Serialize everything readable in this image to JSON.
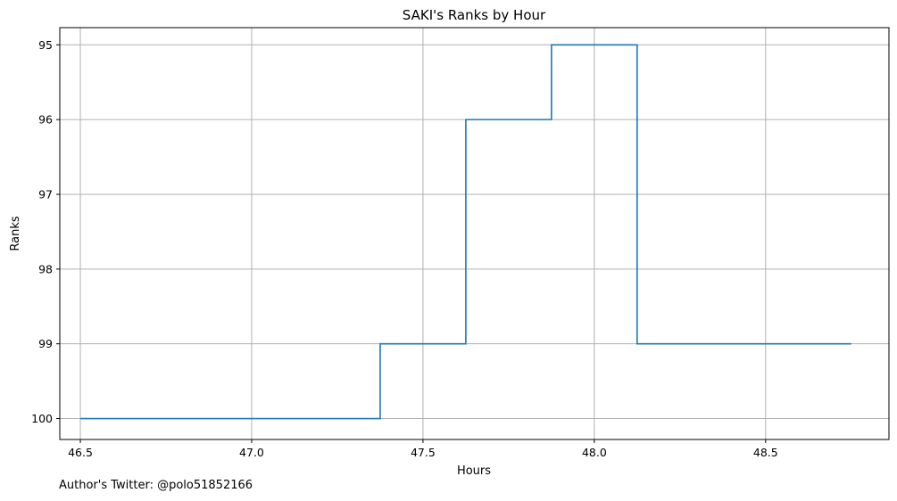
{
  "chart_data": {
    "type": "line",
    "drawstyle": "steps-mid",
    "title": "SAKI's Ranks by Hour",
    "xlabel": "Hours",
    "ylabel": "Ranks",
    "xlim": [
      46.44,
      48.86
    ],
    "ylim": [
      100.28,
      94.77
    ],
    "y_inverted": true,
    "grid": true,
    "xticks": [
      46.5,
      47.0,
      47.5,
      48.0,
      48.5
    ],
    "xtick_labels": [
      "46.5",
      "47.0",
      "47.5",
      "48.0",
      "48.5"
    ],
    "yticks": [
      95,
      96,
      97,
      98,
      99,
      100
    ],
    "ytick_labels": [
      "95",
      "96",
      "97",
      "98",
      "99",
      "100"
    ],
    "series": [
      {
        "color": "#1f77b4",
        "x": [
          46.5,
          46.75,
          47.0,
          47.25,
          47.5,
          47.75,
          48.0,
          48.25,
          48.5,
          48.75
        ],
        "y": [
          100,
          100,
          100,
          100,
          99,
          96,
          95,
          99,
          99,
          99
        ]
      }
    ]
  },
  "footer": "Author's Twitter: @polo51852166"
}
